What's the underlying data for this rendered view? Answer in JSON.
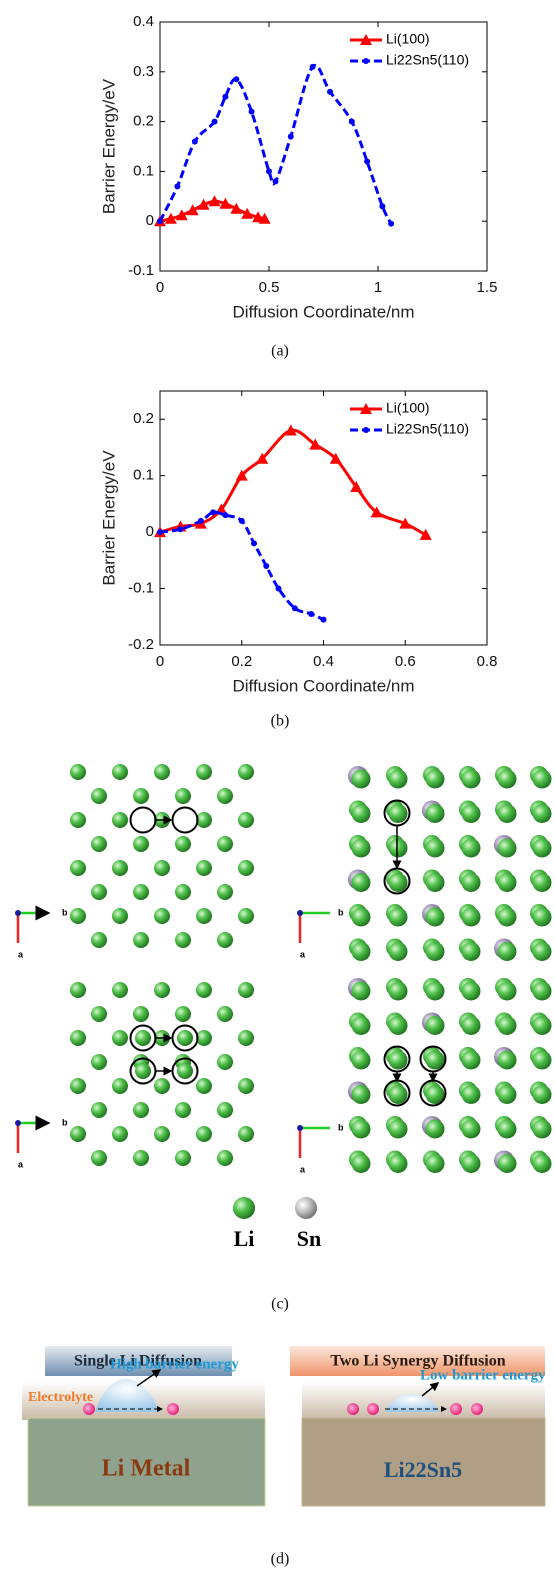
{
  "chart_data": [
    {
      "type": "line",
      "xlabel": "Diffusion Coordinate/nm",
      "ylabel": "Barrier Energy/eV",
      "xlim": [
        0,
        1.5
      ],
      "ylim": [
        -0.1,
        0.4
      ],
      "xticks": [
        0,
        0.5,
        1,
        1.5
      ],
      "yticks": [
        -0.1,
        0,
        0.1,
        0.2,
        0.3,
        0.4
      ],
      "legend": "upper right",
      "series": [
        {
          "name": "Li(100)",
          "color": "#ff0000",
          "marker": "triangle",
          "dashed": false,
          "x": [
            0,
            0.05,
            0.1,
            0.15,
            0.2,
            0.25,
            0.3,
            0.35,
            0.4,
            0.45,
            0.48
          ],
          "values": [
            0,
            0.005,
            0.012,
            0.022,
            0.033,
            0.04,
            0.035,
            0.025,
            0.015,
            0.008,
            0.005
          ]
        },
        {
          "name": "Li22Sn5(110)",
          "color": "#0000ff",
          "marker": "circle",
          "dashed": true,
          "x": [
            0,
            0.08,
            0.16,
            0.25,
            0.3,
            0.35,
            0.42,
            0.5,
            0.53,
            0.6,
            0.7,
            0.78,
            0.88,
            0.95,
            1.02,
            1.06
          ],
          "values": [
            0,
            0.07,
            0.16,
            0.2,
            0.25,
            0.285,
            0.22,
            0.1,
            0.08,
            0.17,
            0.31,
            0.26,
            0.2,
            0.12,
            0.03,
            -0.005
          ]
        }
      ]
    },
    {
      "type": "line",
      "xlabel": "Diffusion Coordinate/nm",
      "ylabel": "Barrier Energy/eV",
      "xlim": [
        0,
        0.8
      ],
      "ylim": [
        -0.2,
        0.25
      ],
      "xticks": [
        0,
        0.2,
        0.4,
        0.6,
        0.8
      ],
      "yticks": [
        -0.2,
        -0.1,
        0,
        0.1,
        0.2
      ],
      "legend": "upper right",
      "series": [
        {
          "name": "Li(100)",
          "color": "#ff0000",
          "marker": "triangle",
          "dashed": false,
          "x": [
            0,
            0.05,
            0.1,
            0.15,
            0.2,
            0.25,
            0.32,
            0.38,
            0.43,
            0.48,
            0.53,
            0.6,
            0.65
          ],
          "values": [
            0,
            0.01,
            0.015,
            0.04,
            0.1,
            0.13,
            0.18,
            0.155,
            0.13,
            0.08,
            0.035,
            0.015,
            -0.005
          ]
        },
        {
          "name": "Li22Sn5(110)",
          "color": "#0000ff",
          "marker": "circle",
          "dashed": true,
          "x": [
            0,
            0.05,
            0.1,
            0.13,
            0.16,
            0.2,
            0.23,
            0.26,
            0.29,
            0.33,
            0.37,
            0.4
          ],
          "values": [
            0,
            0.005,
            0.02,
            0.035,
            0.03,
            0.02,
            -0.02,
            -0.06,
            -0.1,
            -0.135,
            -0.145,
            -0.155
          ]
        }
      ]
    }
  ],
  "figure": {
    "captions": [
      "(a)",
      "(b)",
      "(c)",
      "(d)"
    ],
    "crystal": {
      "axis_b": "b",
      "axis_a": "a",
      "legend": [
        "Li",
        "Sn"
      ]
    },
    "schematic": {
      "left": {
        "title": "Single Li Diffusion",
        "electrolyte": "Electrolyte",
        "barrier": "High barrier energy",
        "substrate": "Li Metal"
      },
      "right": {
        "title": "Two Li Synergy Diffusion",
        "barrier": "Low barrier energy",
        "substrate": "Li22Sn5"
      }
    }
  }
}
